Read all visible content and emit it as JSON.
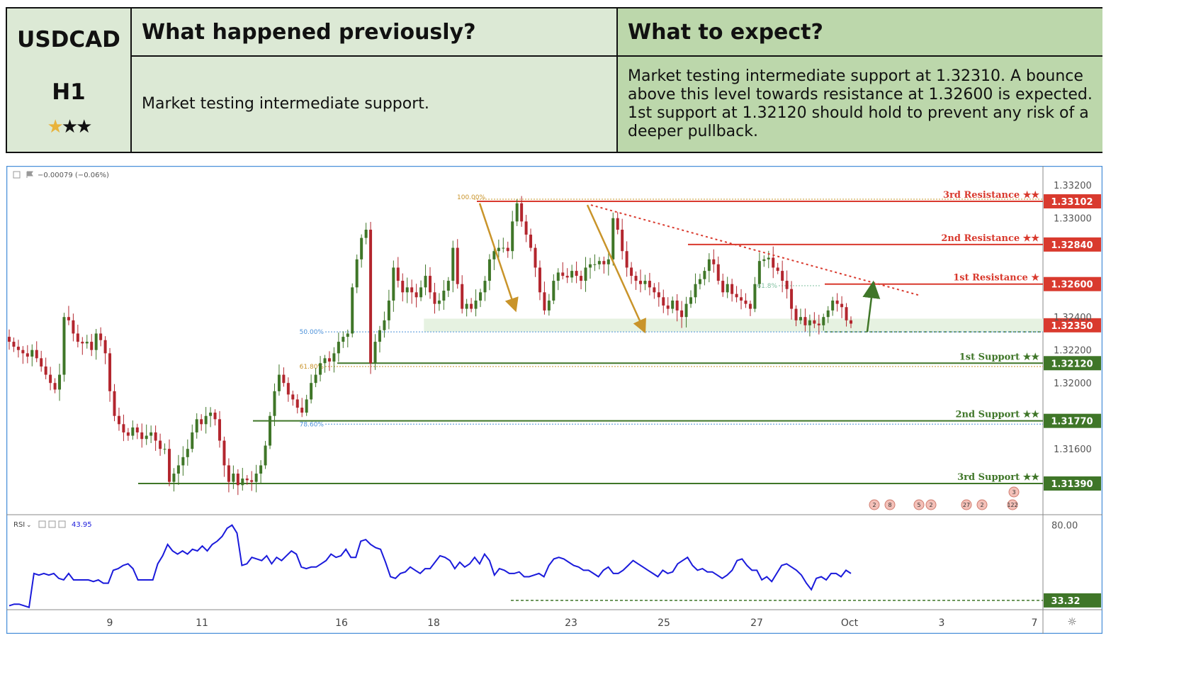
{
  "header": {
    "symbol": "USDCAD",
    "timeframe": "H1",
    "rating_stars": "★★★",
    "prev_title": "What happened previously?",
    "expect_title": "What to expect?",
    "prev_text": "Market testing intermediate support.",
    "expect_text": "Market testing intermediate support at 1.32310. A bounce above this level towards resistance at 1.32600 is expected. 1st support at 1.32120 should hold to prevent any risk of a deeper pullback."
  },
  "colors": {
    "resistance": "#d93a2e",
    "support": "#3f7628",
    "rsi": "#1a1adb",
    "fib": "#c9942a",
    "up_candle": "#3f7628",
    "down_candle": "#b3262e",
    "zone": "#e6f2e1"
  },
  "chart_data": {
    "type": "candlestick",
    "instrument": "USDCAD",
    "timeframe": "H1",
    "legend_text": "−0.00079 (−0.06%)",
    "price_axis_ticks": [
      "1.33200",
      "1.33000",
      "1.32400",
      "1.32200",
      "1.32000",
      "1.31600"
    ],
    "price_ylim": [
      1.3124,
      1.3329
    ],
    "x_tick_labels": [
      "9",
      "11",
      "16",
      "18",
      "23",
      "25",
      "27",
      "Oct",
      "3",
      "7"
    ],
    "levels": [
      {
        "name": "3rd Resistance",
        "stars": "★★",
        "value": 1.33102,
        "kind": "resistance"
      },
      {
        "name": "2nd Resistance",
        "stars": "★★",
        "value": 1.3284,
        "kind": "resistance"
      },
      {
        "name": "1st Resistance",
        "stars": "★",
        "value": 1.326,
        "kind": "resistance"
      },
      {
        "name": "",
        "stars": "",
        "value": 1.3235,
        "kind": "resistance"
      },
      {
        "name": "1st Support",
        "stars": "★★",
        "value": 1.3212,
        "kind": "support"
      },
      {
        "name": "2nd Support",
        "stars": "★★",
        "value": 1.3177,
        "kind": "support"
      },
      {
        "name": "3rd Support",
        "stars": "★★",
        "value": 1.3139,
        "kind": "support"
      }
    ],
    "price_labels": [
      "1.33102",
      "1.32840",
      "1.32600",
      "1.32350",
      "1.32120",
      "1.31770",
      "1.31390"
    ],
    "fib_labels": [
      {
        "label": "100.00%",
        "value": 1.33115
      },
      {
        "label": "61.8%",
        "value": 1.3259
      },
      {
        "label": "50.00%",
        "value": 1.3231
      },
      {
        "label": "61.80%",
        "value": 1.321
      },
      {
        "label": "78.60%",
        "value": 1.3175
      }
    ],
    "zone": [
      1.3231,
      1.3239
    ],
    "series": [
      {
        "values": [
          1.3225,
          1.3222,
          1.322,
          1.3218,
          1.3216,
          1.322,
          1.3215,
          1.321,
          1.3205,
          1.32,
          1.3196,
          1.3205,
          1.324,
          1.3238,
          1.323,
          1.3225,
          1.3224,
          1.3225,
          1.322,
          1.323,
          1.3226,
          1.3218,
          1.3195,
          1.318,
          1.3175,
          1.317,
          1.3168,
          1.3173,
          1.317,
          1.3166,
          1.3168,
          1.317,
          1.3165,
          1.316,
          1.316,
          1.314,
          1.3145,
          1.315,
          1.3155,
          1.316,
          1.317,
          1.3178,
          1.3175,
          1.318,
          1.3182,
          1.3178,
          1.3165,
          1.315,
          1.314,
          1.3145,
          1.3138,
          1.3142,
          1.3141,
          1.314,
          1.3145,
          1.315,
          1.3162,
          1.318,
          1.3195,
          1.3205,
          1.32,
          1.3193,
          1.319,
          1.3185,
          1.3182,
          1.319,
          1.32,
          1.3205,
          1.3212,
          1.3215,
          1.3213,
          1.3218,
          1.3225,
          1.3228,
          1.323,
          1.3258,
          1.3275,
          1.3288,
          1.3293,
          1.3212,
          1.3225,
          1.3232,
          1.3238,
          1.325,
          1.327,
          1.3262,
          1.3255,
          1.3258,
          1.3255,
          1.3252,
          1.3258,
          1.3265,
          1.3255,
          1.3248,
          1.325,
          1.3256,
          1.3262,
          1.3282,
          1.326,
          1.3245,
          1.3248,
          1.3245,
          1.325,
          1.3255,
          1.3262,
          1.3275,
          1.328,
          1.3282,
          1.3282,
          1.328,
          1.3298,
          1.3309,
          1.3298,
          1.329,
          1.3282,
          1.327,
          1.3255,
          1.3244,
          1.325,
          1.3262,
          1.3267,
          1.3265,
          1.3264,
          1.3268,
          1.3265,
          1.3262,
          1.327,
          1.3272,
          1.3272,
          1.3274,
          1.3272,
          1.3275,
          1.33,
          1.3293,
          1.328,
          1.327,
          1.3265,
          1.3262,
          1.326,
          1.3262,
          1.3258,
          1.3255,
          1.3252,
          1.3247,
          1.3245,
          1.325,
          1.3244,
          1.324,
          1.3248,
          1.3252,
          1.326,
          1.3263,
          1.3268,
          1.3275,
          1.3272,
          1.3262,
          1.3255,
          1.326,
          1.3254,
          1.3252,
          1.325,
          1.3248,
          1.3245,
          1.326,
          1.3274,
          1.3275,
          1.3276,
          1.327,
          1.3268,
          1.3262,
          1.3257,
          1.3245,
          1.3238,
          1.324,
          1.3235,
          1.3238,
          1.3236,
          1.3235,
          1.324,
          1.3244,
          1.325,
          1.3248,
          1.3246,
          1.3238,
          1.3236
        ]
      }
    ],
    "rsi": {
      "label": "RSI",
      "current": "43.95",
      "marker_label": "33.32",
      "marker_value": 33.32,
      "axis_ticks": [
        "80.00"
      ],
      "ylim": [
        28,
        86
      ],
      "values": [
        30,
        31,
        31,
        30,
        29,
        50,
        49,
        50,
        49,
        50,
        47,
        46,
        50,
        46,
        46,
        46,
        46,
        45,
        46,
        44,
        44,
        52,
        53,
        55,
        56,
        53,
        46,
        46,
        46,
        46,
        56,
        61,
        68,
        64,
        62,
        64,
        62,
        65,
        64,
        67,
        64,
        68,
        70,
        73,
        78,
        80,
        75,
        55,
        56,
        60,
        59,
        58,
        61,
        56,
        60,
        58,
        61,
        64,
        62,
        54,
        53,
        54,
        54,
        56,
        58,
        62,
        60,
        61,
        65,
        60,
        60,
        70,
        71,
        68,
        66,
        65,
        57,
        48,
        47,
        50,
        51,
        54,
        52,
        50,
        53,
        53,
        57,
        61,
        60,
        58,
        53,
        57,
        54,
        56,
        60,
        56,
        62,
        58,
        49,
        53,
        52,
        50,
        50,
        51,
        48,
        48,
        49,
        50,
        48,
        55,
        59,
        60,
        59,
        57,
        55,
        54,
        52,
        52,
        50,
        48,
        52,
        54,
        50,
        50,
        52,
        55,
        58,
        56,
        54,
        52,
        50,
        48,
        52,
        50,
        51,
        56,
        58,
        60,
        55,
        52,
        53,
        51,
        51,
        49,
        47,
        49,
        52,
        58,
        59,
        55,
        52,
        52,
        46,
        48,
        45,
        50,
        55,
        56,
        54,
        52,
        49,
        44,
        40,
        47,
        48,
        46,
        50,
        50,
        48,
        52,
        50
      ]
    },
    "event_badges": [
      "2",
      "8",
      "5",
      "2",
      "27",
      "2",
      "3",
      "122"
    ]
  }
}
